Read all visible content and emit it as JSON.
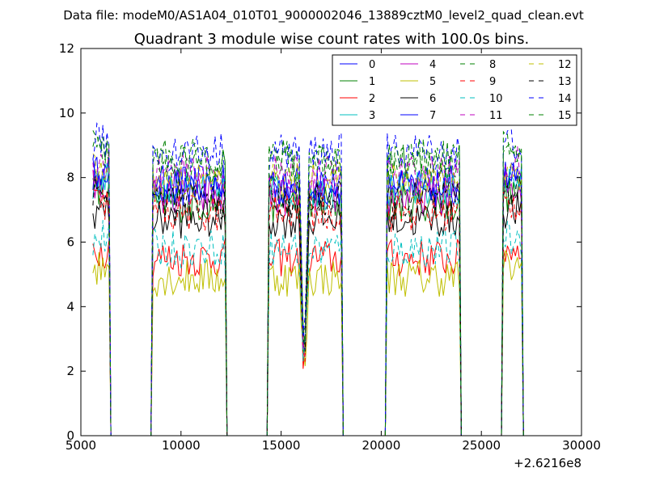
{
  "chart_data": {
    "type": "line",
    "supertitle": "Data file: modeM0/AS1A04_010T01_9000002046_13889cztM0_level2_quad_clean.evt",
    "title": "Quadrant 3 module wise count rates with 100.0s bins.",
    "xlabel": "",
    "ylabel": "",
    "xlim": [
      5000,
      30000
    ],
    "ylim": [
      0,
      12
    ],
    "x_offset_label": "+2.6216e8",
    "x_ticks": [
      5000,
      10000,
      15000,
      20000,
      25000,
      30000
    ],
    "x_tick_labels": [
      "5000",
      "10000",
      "15000",
      "20000",
      "25000",
      "30000"
    ],
    "y_ticks": [
      0,
      2,
      4,
      6,
      8,
      10,
      12
    ],
    "y_tick_labels": [
      "0",
      "2",
      "4",
      "6",
      "8",
      "10",
      "12"
    ],
    "grid": false,
    "legend_position": "top-right",
    "orbit_segments": [
      {
        "x_start": 5600,
        "x_end": 6400
      },
      {
        "x_start": 8600,
        "x_end": 12200
      },
      {
        "x_start": 14400,
        "x_end": 18000
      },
      {
        "x_start": 20300,
        "x_end": 23900
      },
      {
        "x_start": 26100,
        "x_end": 27000
      }
    ],
    "series": [
      {
        "name": "0",
        "color": "#0000ff",
        "dash": "solid",
        "level": 7.8
      },
      {
        "name": "1",
        "color": "#008000",
        "dash": "solid",
        "level": 7.2
      },
      {
        "name": "2",
        "color": "#ff0000",
        "dash": "solid",
        "level": 5.5
      },
      {
        "name": "3",
        "color": "#00bfbf",
        "dash": "solid",
        "level": 7.6
      },
      {
        "name": "4",
        "color": "#bf00bf",
        "dash": "solid",
        "level": 7.4
      },
      {
        "name": "5",
        "color": "#bfbf00",
        "dash": "solid",
        "level": 4.9
      },
      {
        "name": "6",
        "color": "#000000",
        "dash": "solid",
        "level": 6.7
      },
      {
        "name": "7",
        "color": "#0000ff",
        "dash": "solid",
        "level": 7.7
      },
      {
        "name": "8",
        "color": "#008000",
        "dash": "dashed",
        "level": 8.4
      },
      {
        "name": "9",
        "color": "#ff0000",
        "dash": "dashed",
        "level": 6.9
      },
      {
        "name": "10",
        "color": "#00bfbf",
        "dash": "dashed",
        "level": 5.8
      },
      {
        "name": "11",
        "color": "#bf00bf",
        "dash": "dashed",
        "level": 8.1
      },
      {
        "name": "12",
        "color": "#bfbf00",
        "dash": "dashed",
        "level": 7.9
      },
      {
        "name": "13",
        "color": "#000000",
        "dash": "dashed",
        "level": 7.3
      },
      {
        "name": "14",
        "color": "#0000ff",
        "dash": "dashed",
        "level": 8.8
      },
      {
        "name": "15",
        "color": "#008000",
        "dash": "dashed",
        "level": 8.6
      }
    ]
  }
}
